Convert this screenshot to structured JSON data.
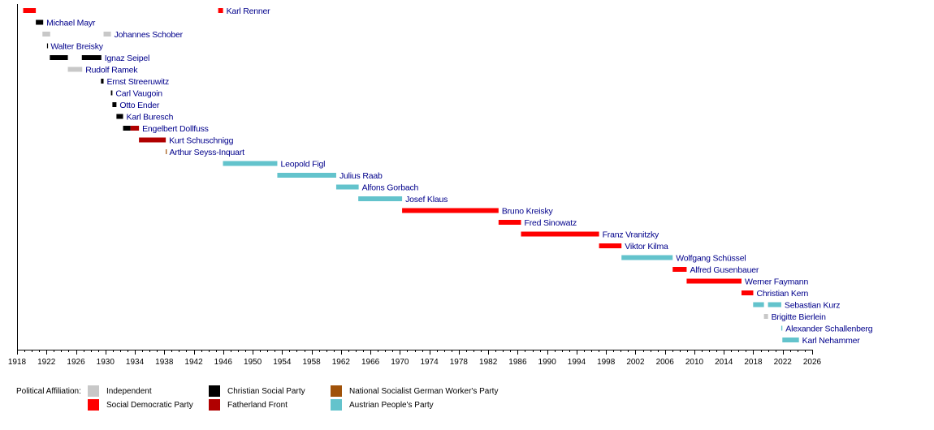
{
  "chart_data": {
    "type": "timeline",
    "title": "",
    "xlabel": "",
    "ylabel": "",
    "xlim": [
      1918,
      2026
    ],
    "xticks": [
      "1918",
      "1922",
      "1926",
      "1930",
      "1934",
      "1938",
      "1942",
      "1946",
      "1950",
      "1954",
      "1958",
      "1962",
      "1966",
      "1970",
      "1974",
      "1978",
      "1982",
      "1986",
      "1990",
      "1994",
      "1998",
      "2002",
      "2006",
      "2010",
      "2014",
      "2018",
      "2022",
      "2026"
    ],
    "minor_tick_interval_years": 1,
    "grid": false,
    "legend": {
      "title": "Political Affiliation:",
      "placement": "bottom-left",
      "items": [
        {
          "key": "independent",
          "label": "Independent",
          "color": "#c8c8c8"
        },
        {
          "key": "christian_social",
          "label": "Christian Social Party",
          "color": "#000000"
        },
        {
          "key": "nazi",
          "label": "National Socialist German Worker's Party",
          "color": "#a0520a"
        },
        {
          "key": "social_democratic",
          "label": "Social Democratic Party",
          "color": "#ff0000"
        },
        {
          "key": "fatherland_front",
          "label": "Fatherland Front",
          "color": "#b00000"
        },
        {
          "key": "peoples_party",
          "label": "Austrian People's Party",
          "color": "#63c3cc"
        }
      ]
    },
    "rows": [
      {
        "name": "Karl Renner",
        "label_after_segment": 1,
        "segments": [
          {
            "start": 1918.83,
            "end": 1920.55,
            "party": "social_democratic"
          },
          {
            "start": 1945.32,
            "end": 1945.98,
            "party": "social_democratic"
          }
        ]
      },
      {
        "name": "Michael Mayr",
        "segments": [
          {
            "start": 1920.55,
            "end": 1921.55,
            "party": "christian_social"
          }
        ]
      },
      {
        "name": "Johannes Schober",
        "label_after_segment": 1,
        "segments": [
          {
            "start": 1921.45,
            "end": 1922.5,
            "party": "independent"
          },
          {
            "start": 1929.75,
            "end": 1930.75,
            "party": "independent"
          }
        ]
      },
      {
        "name": "Walter Breisky",
        "segments": [
          {
            "start": 1922.07,
            "end": 1922.12,
            "party": "christian_social"
          }
        ]
      },
      {
        "name": "Ignaz Seipel",
        "label_after_segment": 1,
        "segments": [
          {
            "start": 1922.45,
            "end": 1924.9,
            "party": "christian_social"
          },
          {
            "start": 1926.8,
            "end": 1929.45,
            "party": "christian_social"
          }
        ]
      },
      {
        "name": "Rudolf Ramek",
        "segments": [
          {
            "start": 1924.9,
            "end": 1926.85,
            "party": "independent"
          }
        ]
      },
      {
        "name": "Ernst Streeruwitz",
        "segments": [
          {
            "start": 1929.4,
            "end": 1929.75,
            "party": "christian_social"
          }
        ]
      },
      {
        "name": "Carl Vaugoin",
        "segments": [
          {
            "start": 1930.75,
            "end": 1930.95,
            "party": "christian_social"
          }
        ]
      },
      {
        "name": "Otto Ender",
        "segments": [
          {
            "start": 1930.95,
            "end": 1931.5,
            "party": "christian_social"
          }
        ]
      },
      {
        "name": "Karl Buresch",
        "segments": [
          {
            "start": 1931.5,
            "end": 1932.4,
            "party": "christian_social"
          }
        ]
      },
      {
        "name": "Engelbert Dollfuss",
        "segments": [
          {
            "start": 1932.4,
            "end": 1933.4,
            "party": "christian_social"
          },
          {
            "start": 1933.4,
            "end": 1934.56,
            "party": "fatherland_front"
          }
        ]
      },
      {
        "name": "Kurt Schuschnigg",
        "segments": [
          {
            "start": 1934.56,
            "end": 1938.2,
            "party": "fatherland_front"
          }
        ]
      },
      {
        "name": "Arthur Seyss-Inquart",
        "segments": [
          {
            "start": 1938.2,
            "end": 1938.25,
            "party": "nazi"
          }
        ]
      },
      {
        "name": "Leopold Figl",
        "segments": [
          {
            "start": 1945.97,
            "end": 1953.35,
            "party": "peoples_party"
          }
        ]
      },
      {
        "name": "Julius Raab",
        "segments": [
          {
            "start": 1953.35,
            "end": 1961.35,
            "party": "peoples_party"
          }
        ]
      },
      {
        "name": "Alfons Gorbach",
        "segments": [
          {
            "start": 1961.35,
            "end": 1964.4,
            "party": "peoples_party"
          }
        ]
      },
      {
        "name": "Josef Klaus",
        "segments": [
          {
            "start": 1964.35,
            "end": 1970.3,
            "party": "peoples_party"
          }
        ]
      },
      {
        "name": "Bruno Kreisky",
        "segments": [
          {
            "start": 1970.3,
            "end": 1983.4,
            "party": "social_democratic"
          }
        ]
      },
      {
        "name": "Fred Sinowatz",
        "segments": [
          {
            "start": 1983.4,
            "end": 1986.45,
            "party": "social_democratic"
          }
        ]
      },
      {
        "name": "Franz Vranitzky",
        "segments": [
          {
            "start": 1986.45,
            "end": 1997.05,
            "party": "social_democratic"
          }
        ]
      },
      {
        "name": "Viktor Kilma",
        "segments": [
          {
            "start": 1997.05,
            "end": 2000.1,
            "party": "social_democratic"
          }
        ]
      },
      {
        "name": "Wolfgang Schüssel",
        "segments": [
          {
            "start": 2000.1,
            "end": 2007.05,
            "party": "peoples_party"
          }
        ]
      },
      {
        "name": "Alfred Gusenbauer",
        "segments": [
          {
            "start": 2007.05,
            "end": 2008.95,
            "party": "social_democratic"
          }
        ]
      },
      {
        "name": "Werner Faymann",
        "segments": [
          {
            "start": 2008.95,
            "end": 2016.4,
            "party": "social_democratic"
          }
        ]
      },
      {
        "name": "Christian Kern",
        "segments": [
          {
            "start": 2016.4,
            "end": 2018.0,
            "party": "social_democratic"
          }
        ]
      },
      {
        "name": "Sebastian Kurz",
        "label_after_segment": 1,
        "segments": [
          {
            "start": 2017.98,
            "end": 2019.45,
            "party": "peoples_party"
          },
          {
            "start": 2020.0,
            "end": 2021.8,
            "party": "peoples_party"
          }
        ]
      },
      {
        "name": "Brigitte Bierlein",
        "segments": [
          {
            "start": 2019.45,
            "end": 2020.0,
            "party": "independent"
          }
        ]
      },
      {
        "name": "Alexander Schallenberg",
        "segments": [
          {
            "start": 2021.8,
            "end": 2021.95,
            "party": "peoples_party"
          }
        ]
      },
      {
        "name": "Karl Nehammer",
        "segments": [
          {
            "start": 2021.95,
            "end": 2024.2,
            "party": "peoples_party"
          }
        ]
      }
    ]
  }
}
